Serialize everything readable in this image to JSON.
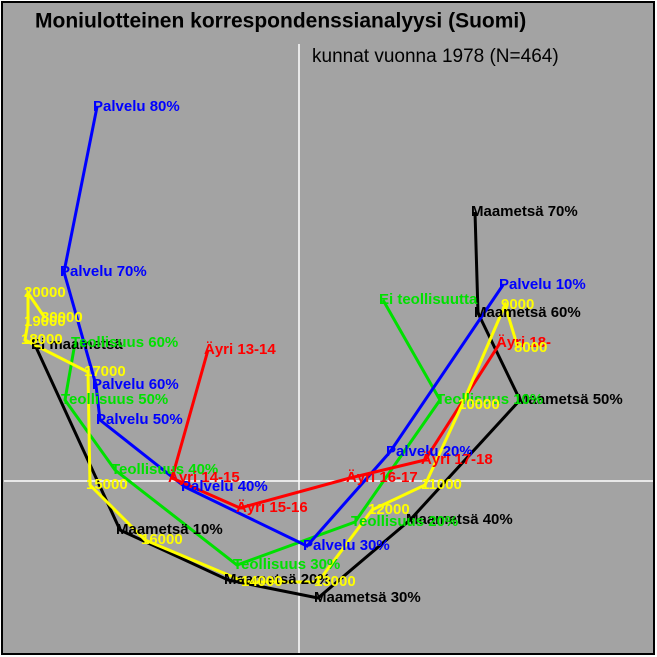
{
  "chart_data": {
    "type": "line",
    "title": "Moniulotteinen korrespondenssianalyysi (Suomi)",
    "subtitle": "kunnat vuonna 1978 (N=464)",
    "xlim": [
      -2.95,
      3.54
    ],
    "ylim": [
      -1.72,
      4.77
    ],
    "series": [
      {
        "color": "#000000",
        "labels": [
          "Ei maametsä",
          "Maametsä 10%",
          "Maametsä 20%",
          "Maametsä 30%",
          "Maametsä 40%",
          "Maametsä 50%",
          "Maametsä 60%",
          "Maametsä 70%"
        ],
        "x": [
          -2.64,
          -1.79,
          -0.71,
          0.19,
          1.11,
          2.21,
          1.79,
          1.76
        ],
        "values": [
          1.36,
          -0.49,
          -0.99,
          -1.17,
          -0.39,
          0.81,
          1.68,
          2.69
        ]
      },
      {
        "color": "#00e000",
        "labels": [
          "Teollisuus 60%",
          "Teollisuus 50%",
          "Teollisuus 40%",
          "Teollisuus 30%",
          "Teollisuus 20%",
          "Teollisuus 10%",
          "Ei teollisuutta"
        ],
        "x": [
          -2.24,
          -2.34,
          -1.84,
          -0.62,
          0.56,
          1.41,
          0.84
        ],
        "values": [
          1.38,
          0.81,
          0.11,
          -0.84,
          -0.41,
          0.81,
          1.81
        ]
      },
      {
        "color": "#0000ff",
        "labels": [
          "Palvelu 80%",
          "Palvelu 70%",
          "Palvelu 60%",
          "Palvelu 50%",
          "Palvelu 40%",
          "Palvelu 30%",
          "Palvelu 20%",
          "Palvelu 10%"
        ],
        "x": [
          -2.02,
          -2.35,
          -2.03,
          -1.99,
          -1.14,
          0.08,
          0.91,
          2.04
        ],
        "values": [
          3.74,
          2.09,
          0.96,
          0.61,
          -0.06,
          -0.65,
          0.29,
          1.96
        ]
      },
      {
        "color": "#ff0000",
        "labels": [
          "Äyri 13-14",
          "Äyri 14-15",
          "Äyri 15-16",
          "Äyri 16-17",
          "Äyri 17-18",
          "Äyri 18-"
        ],
        "x": [
          -0.91,
          -1.27,
          -0.59,
          0.51,
          1.26,
          2.01
        ],
        "values": [
          1.31,
          0.03,
          -0.27,
          0.03,
          0.21,
          1.38
        ]
      },
      {
        "color": "#ffff00",
        "labels": [
          "30000",
          "20000",
          "19000",
          "18000",
          "17000",
          "15000",
          "16000",
          "14000",
          "13000",
          "12000",
          "11000",
          "10000",
          "9000",
          "8000"
        ],
        "x": [
          -2.54,
          -2.71,
          -2.71,
          -2.74,
          -2.11,
          -2.09,
          -1.54,
          -0.54,
          0.19,
          0.73,
          1.26,
          1.63,
          2.06,
          2.19
        ],
        "values": [
          1.63,
          1.88,
          1.59,
          1.41,
          1.09,
          -0.04,
          -0.59,
          -1.01,
          -1.01,
          -0.29,
          -0.04,
          0.76,
          1.76,
          1.33
        ]
      }
    ]
  }
}
